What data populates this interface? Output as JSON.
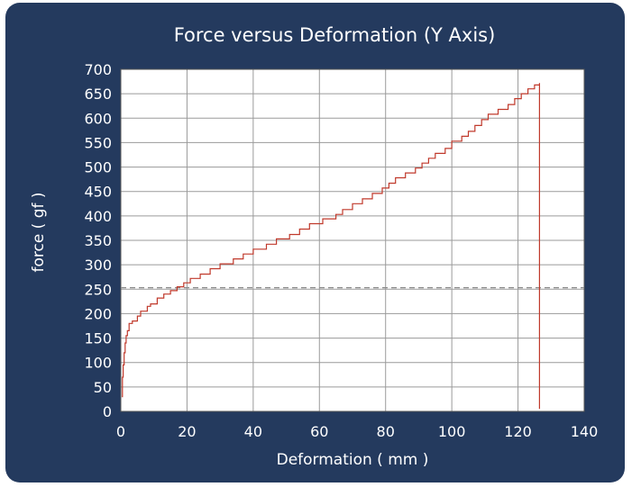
{
  "chart_data": {
    "type": "line",
    "title": "Force versus Deformation (Y Axis)",
    "xlabel": "Deformation ( mm )",
    "ylabel": "force ( gf )",
    "xlim": [
      0,
      140
    ],
    "ylim": [
      0,
      700
    ],
    "xticks": [
      0,
      20,
      40,
      60,
      80,
      100,
      120,
      140
    ],
    "yticks": [
      0,
      50,
      100,
      150,
      200,
      250,
      300,
      350,
      400,
      450,
      500,
      550,
      600,
      650,
      700
    ],
    "grid": true,
    "reference_line": {
      "y": 253,
      "style": "dashed",
      "color": "#8a8a8a"
    },
    "series": [
      {
        "color": "#c0392b",
        "step": true,
        "points": [
          [
            0.3,
            30
          ],
          [
            0.5,
            70
          ],
          [
            0.7,
            95
          ],
          [
            1,
            120
          ],
          [
            1.3,
            140
          ],
          [
            1.6,
            155
          ],
          [
            2,
            165
          ],
          [
            2.5,
            180
          ],
          [
            3.5,
            185
          ],
          [
            5,
            195
          ],
          [
            6,
            205
          ],
          [
            8,
            215
          ],
          [
            9,
            220
          ],
          [
            11,
            232
          ],
          [
            13,
            240
          ],
          [
            15,
            247
          ],
          [
            17,
            255
          ],
          [
            19,
            263
          ],
          [
            21,
            272
          ],
          [
            24,
            281
          ],
          [
            27,
            292
          ],
          [
            30,
            302
          ],
          [
            34,
            312
          ],
          [
            37,
            322
          ],
          [
            40,
            332
          ],
          [
            44,
            342
          ],
          [
            47,
            353
          ],
          [
            51,
            362
          ],
          [
            54,
            373
          ],
          [
            57,
            384
          ],
          [
            61,
            394
          ],
          [
            65,
            403
          ],
          [
            67,
            413
          ],
          [
            70,
            425
          ],
          [
            73,
            435
          ],
          [
            76,
            446
          ],
          [
            79,
            457
          ],
          [
            81,
            467
          ],
          [
            83,
            478
          ],
          [
            86,
            488
          ],
          [
            89,
            498
          ],
          [
            91,
            508
          ],
          [
            93,
            518
          ],
          [
            95,
            528
          ],
          [
            98,
            538
          ],
          [
            100,
            553
          ],
          [
            103,
            563
          ],
          [
            105,
            573
          ],
          [
            107,
            585
          ],
          [
            109,
            597
          ],
          [
            111,
            608
          ],
          [
            114,
            618
          ],
          [
            117,
            628
          ],
          [
            119,
            640
          ],
          [
            121,
            650
          ],
          [
            123,
            660
          ],
          [
            125,
            668
          ],
          [
            126.5,
            672
          ],
          [
            126.5,
            5
          ]
        ]
      }
    ]
  }
}
